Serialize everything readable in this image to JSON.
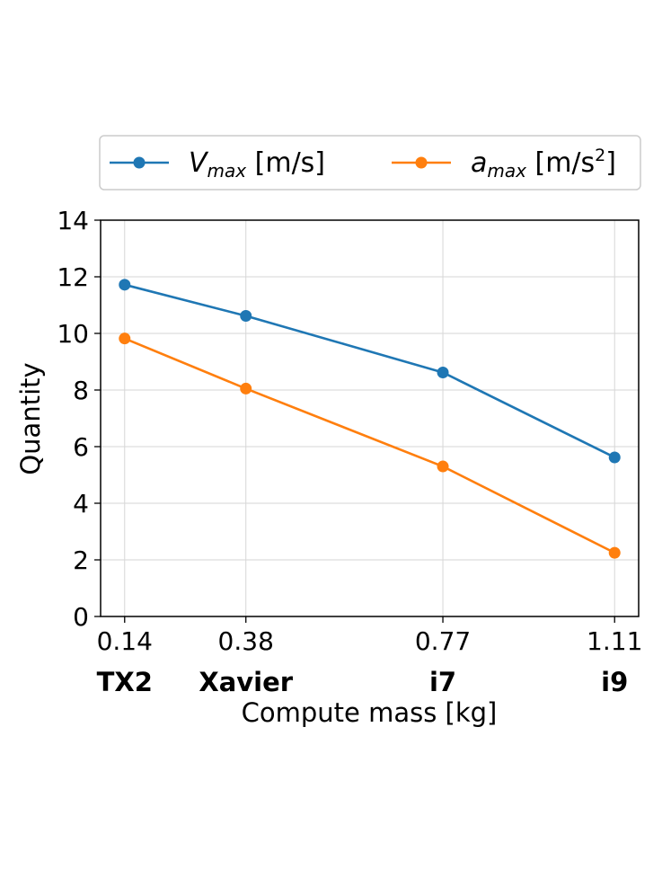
{
  "chart_data": {
    "type": "line",
    "title": "",
    "xlabel": "Compute mass [kg]",
    "ylabel": "Quantity",
    "x": [
      0.14,
      0.38,
      0.77,
      1.11
    ],
    "x_tick_labels": [
      "0.14",
      "0.38",
      "0.77",
      "1.11"
    ],
    "categories": [
      "TX2",
      "Xavier",
      "i7",
      "i9"
    ],
    "xlim": [
      0.0924,
      1.1576
    ],
    "ylim": [
      0,
      14
    ],
    "y_ticks": [
      0,
      2,
      4,
      6,
      8,
      10,
      12,
      14
    ],
    "grid": true,
    "legend_position": "top-outside",
    "series": [
      {
        "name": "V_max [m/s]",
        "legend": {
          "symbol": "V",
          "sub": "max",
          "unit": " [m/s]",
          "sup": ""
        },
        "color": "#1f77b4",
        "values": [
          11.72,
          10.62,
          8.62,
          5.62
        ]
      },
      {
        "name": "a_max [m/s²]",
        "legend": {
          "symbol": "a",
          "sub": "max",
          "unit": " [m/s",
          "sup": "2",
          "close": "]"
        },
        "color": "#ff7f0e",
        "values": [
          9.82,
          8.05,
          5.3,
          2.25
        ]
      }
    ]
  }
}
